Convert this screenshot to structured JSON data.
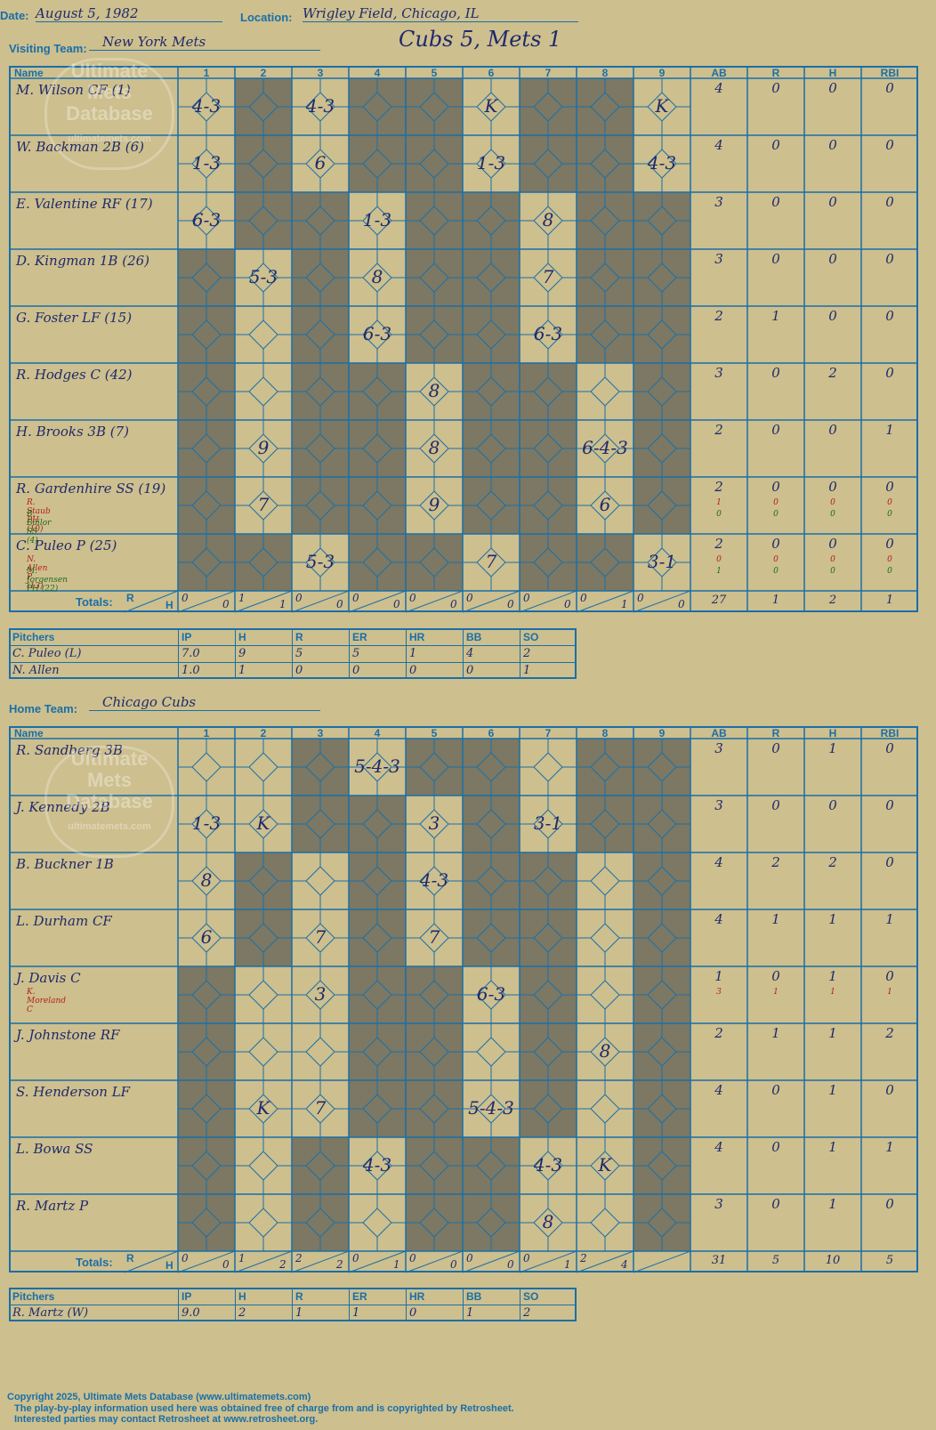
{
  "header": {
    "date_label": "Date:",
    "date": "August 5, 1982",
    "location_label": "Location:",
    "location": "Wrigley Field, Chicago, IL",
    "headline": "Cubs 5, Mets 1",
    "visiting_label": "Visiting Team:",
    "visiting_team": "New York Mets",
    "home_label": "Home Team:",
    "home_team": "Chicago Cubs"
  },
  "grid_headers": {
    "name": "Name",
    "innings": [
      "1",
      "2",
      "3",
      "4",
      "5",
      "6",
      "7",
      "8",
      "9"
    ],
    "stats": [
      "AB",
      "R",
      "H",
      "RBI"
    ],
    "totals": "Totals:",
    "r": "R",
    "h": "H"
  },
  "visitors": {
    "rows": [
      {
        "name": "M. Wilson CF (1)",
        "subs": [],
        "stats": [
          "4",
          "0",
          "0",
          "0"
        ],
        "gray": [
          2,
          4,
          5,
          7,
          8
        ],
        "codes": {
          "1": "4-3",
          "3": "4-3",
          "6": "K",
          "9": "K"
        }
      },
      {
        "name": "W. Backman 2B (6)",
        "subs": [],
        "stats": [
          "4",
          "0",
          "0",
          "0"
        ],
        "gray": [
          2,
          4,
          5,
          7,
          8
        ],
        "codes": {
          "1": "1-3",
          "3": "6",
          "6": "1-3",
          "9": "4-3"
        }
      },
      {
        "name": "E. Valentine RF (17)",
        "subs": [],
        "stats": [
          "3",
          "0",
          "0",
          "0"
        ],
        "gray": [
          2,
          3,
          5,
          6,
          8,
          9
        ],
        "codes": {
          "1": "6-3",
          "4": "1-3",
          "7": "8"
        }
      },
      {
        "name": "D. Kingman 1B (26)",
        "subs": [],
        "stats": [
          "3",
          "0",
          "0",
          "0"
        ],
        "gray": [
          1,
          3,
          5,
          6,
          8,
          9
        ],
        "codes": {
          "2": "5-3",
          "4": "8",
          "7": "7"
        }
      },
      {
        "name": "G. Foster LF (15)",
        "subs": [],
        "stats": [
          "2",
          "1",
          "0",
          "0"
        ],
        "gray": [
          1,
          3,
          5,
          6,
          8,
          9
        ],
        "codes": {
          "4": "6-3",
          "7": "6-3"
        }
      },
      {
        "name": "R. Hodges C (42)",
        "subs": [],
        "stats": [
          "3",
          "0",
          "2",
          "0"
        ],
        "gray": [
          1,
          3,
          4,
          6,
          7,
          9
        ],
        "codes": {
          "5": "8"
        }
      },
      {
        "name": "H. Brooks 3B (7)",
        "subs": [],
        "stats": [
          "2",
          "0",
          "0",
          "1"
        ],
        "gray": [
          1,
          3,
          4,
          6,
          7,
          9
        ],
        "codes": {
          "2": "9",
          "5": "8",
          "8": "6-4-3"
        }
      },
      {
        "name": "R. Gardenhire SS (19)",
        "subs": [
          {
            "n": "R. Staub PH (10)",
            "c": "#b32020",
            "s": [
              "1",
              "0",
              "0",
              "0"
            ]
          },
          {
            "n": "B. Bailor SS (4)",
            "c": "#1e6b1e",
            "s": [
              "0",
              "0",
              "0",
              "0"
            ]
          }
        ],
        "stats": [
          "2",
          "0",
          "0",
          "0"
        ],
        "gray": [
          1,
          3,
          4,
          6,
          7,
          9
        ],
        "codes": {
          "2": "7",
          "5": "9",
          "8": "6"
        }
      },
      {
        "name": "C. Puleo P (25)",
        "subs": [
          {
            "n": "N. Allen P (13)",
            "c": "#b32020",
            "s": [
              "0",
              "0",
              "0",
              "0"
            ]
          },
          {
            "n": "M. Jorgensen PH (22)",
            "c": "#1e6b1e",
            "s": [
              "1",
              "0",
              "0",
              "0"
            ]
          }
        ],
        "stats": [
          "2",
          "0",
          "0",
          "0"
        ],
        "gray": [
          1,
          2,
          4,
          5,
          7,
          8
        ],
        "codes": {
          "3": "5-3",
          "6": "7",
          "9": "3-1"
        }
      }
    ],
    "totals": [
      [
        "0",
        "0"
      ],
      [
        "1",
        "1"
      ],
      [
        "0",
        "0"
      ],
      [
        "0",
        "0"
      ],
      [
        "0",
        "0"
      ],
      [
        "0",
        "0"
      ],
      [
        "0",
        "0"
      ],
      [
        "0",
        "1"
      ],
      [
        "0",
        "0"
      ]
    ],
    "total_stats": [
      "27",
      "1",
      "2",
      "1"
    ],
    "pitch_headers": [
      "Pitchers",
      "IP",
      "H",
      "R",
      "ER",
      "HR",
      "BB",
      "SO"
    ],
    "pitchers": [
      [
        "C. Puleo (L)",
        "7.0",
        "9",
        "5",
        "5",
        "1",
        "4",
        "2"
      ],
      [
        "N. Allen",
        "1.0",
        "1",
        "0",
        "0",
        "0",
        "0",
        "1"
      ]
    ]
  },
  "home": {
    "rows": [
      {
        "name": "R. Sandberg 3B",
        "subs": [],
        "stats": [
          "3",
          "0",
          "1",
          "0"
        ],
        "gray": [
          3,
          5,
          6,
          8,
          9
        ],
        "codes": {
          "4": "5-4-3"
        }
      },
      {
        "name": "J. Kennedy 2B",
        "subs": [],
        "stats": [
          "3",
          "0",
          "0",
          "0"
        ],
        "gray": [
          3,
          4,
          6,
          8,
          9
        ],
        "codes": {
          "1": "1-3",
          "2": "K",
          "5": "3",
          "7": "3-1"
        }
      },
      {
        "name": "B. Buckner 1B",
        "subs": [],
        "stats": [
          "4",
          "2",
          "2",
          "0"
        ],
        "gray": [
          2,
          4,
          6,
          7,
          9
        ],
        "codes": {
          "1": "8",
          "5": "4-3"
        }
      },
      {
        "name": "L. Durham CF",
        "subs": [],
        "stats": [
          "4",
          "1",
          "1",
          "1"
        ],
        "gray": [
          2,
          4,
          6,
          7,
          9
        ],
        "codes": {
          "1": "6",
          "3": "7",
          "5": "7"
        }
      },
      {
        "name": "J. Davis C",
        "subs": [
          {
            "n": "K. Moreland C",
            "c": "#b32020",
            "s": [
              "3",
              "1",
              "1",
              "1"
            ]
          }
        ],
        "stats": [
          "1",
          "0",
          "1",
          "0"
        ],
        "gray": [
          1,
          4,
          5,
          7,
          9
        ],
        "codes": {
          "3": "3",
          "6": "6-3"
        }
      },
      {
        "name": "J. Johnstone RF",
        "subs": [],
        "stats": [
          "2",
          "1",
          "1",
          "2"
        ],
        "gray": [
          1,
          4,
          5,
          7,
          9
        ],
        "codes": {
          "8": "8"
        }
      },
      {
        "name": "S. Henderson LF",
        "subs": [],
        "stats": [
          "4",
          "0",
          "1",
          "0"
        ],
        "gray": [
          1,
          4,
          5,
          7,
          9
        ],
        "codes": {
          "2": "K",
          "3": "7",
          "6": "5-4-3"
        }
      },
      {
        "name": "L. Bowa SS",
        "subs": [],
        "stats": [
          "4",
          "0",
          "1",
          "1"
        ],
        "gray": [
          1,
          3,
          5,
          6,
          9
        ],
        "codes": {
          "4": "4-3",
          "7": "4-3",
          "8": "K"
        }
      },
      {
        "name": "R. Martz P",
        "subs": [],
        "stats": [
          "3",
          "0",
          "1",
          "0"
        ],
        "gray": [
          1,
          3,
          5,
          6,
          9
        ],
        "codes": {
          "7": "8"
        }
      }
    ],
    "totals": [
      [
        "0",
        "0"
      ],
      [
        "1",
        "2"
      ],
      [
        "2",
        "2"
      ],
      [
        "0",
        "1"
      ],
      [
        "0",
        "0"
      ],
      [
        "0",
        "0"
      ],
      [
        "0",
        "1"
      ],
      [
        "2",
        "4"
      ],
      [
        "",
        ""
      ]
    ],
    "total_stats": [
      "31",
      "5",
      "10",
      "5"
    ],
    "pitch_headers": [
      "Pitchers",
      "IP",
      "H",
      "R",
      "ER",
      "HR",
      "BB",
      "SO"
    ],
    "pitchers": [
      [
        "R. Martz (W)",
        "9.0",
        "2",
        "1",
        "1",
        "0",
        "1",
        "2"
      ]
    ]
  },
  "watermark": {
    "line1": "Ultimate",
    "line2": "Mets",
    "line3": "Database",
    "line4": "ultimatemets.com"
  },
  "footer": {
    "line1": "Copyright 2025, Ultimate Mets Database (www.ultimatemets.com)",
    "line2": "The play-by-play information used here was obtained free of charge from and is copyrighted by Retrosheet.",
    "line3": "Interested parties may contact Retrosheet at www.retrosheet.org."
  },
  "colors": {
    "paper": "#cdbf8e",
    "grid": "#1a6fa8",
    "gray": "#7c7863",
    "ink": "#1f2a6b",
    "red": "#b32020",
    "green": "#1e6b1e"
  }
}
